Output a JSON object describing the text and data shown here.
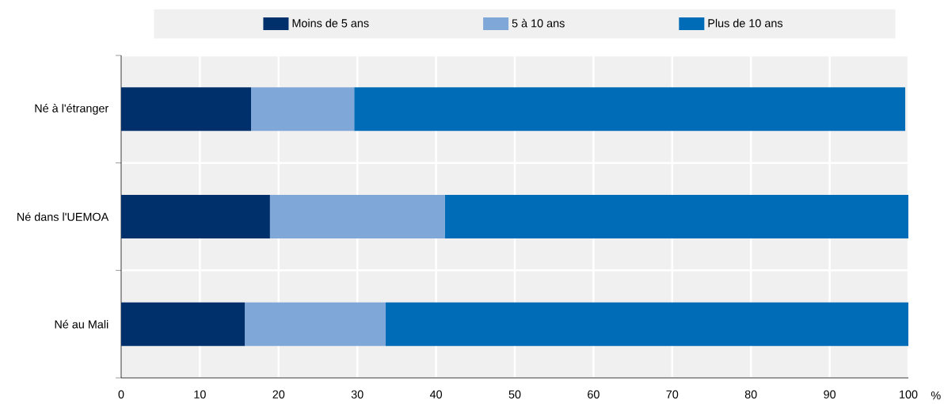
{
  "chart_data": {
    "type": "bar",
    "orientation": "horizontal",
    "stacked": true,
    "categories": [
      "Né à l'étranger",
      "Né dans l'UEMOA",
      "Né au Mali"
    ],
    "series": [
      {
        "name": "Moins de 5 ans",
        "color": "#00306b",
        "values": [
          16.5,
          18.9,
          15.7
        ]
      },
      {
        "name": "5 à 10 ans",
        "color": "#7fa8d9",
        "values": [
          13.1,
          22.2,
          17.9
        ]
      },
      {
        "name": "Plus de 10 ans",
        "color": "#006bb6",
        "values": [
          70.0,
          58.9,
          66.4
        ]
      }
    ],
    "xlim": [
      0,
      100
    ],
    "xticks": [
      0,
      10,
      20,
      30,
      40,
      50,
      60,
      70,
      80,
      90,
      100
    ],
    "xlabel": "%",
    "grid": true,
    "legend": "top"
  }
}
